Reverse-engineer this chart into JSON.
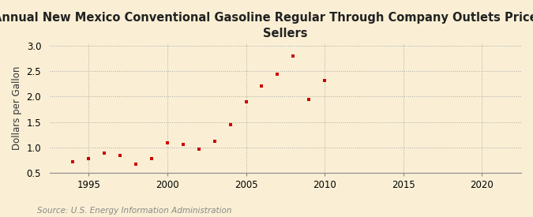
{
  "title": "Annual New Mexico Conventional Gasoline Regular Through Company Outlets Price by All\nSellers",
  "ylabel": "Dollars per Gallon",
  "source": "Source: U.S. Energy Information Administration",
  "years": [
    1994,
    1995,
    1996,
    1997,
    1998,
    1999,
    2000,
    2001,
    2002,
    2003,
    2004,
    2005,
    2006,
    2007,
    2008,
    2009,
    2010
  ],
  "values": [
    0.72,
    0.77,
    0.88,
    0.84,
    0.67,
    0.78,
    1.09,
    1.05,
    0.96,
    1.12,
    1.45,
    1.9,
    2.21,
    2.45,
    2.8,
    1.95,
    2.32
  ],
  "marker_color": "#cc0000",
  "background_color": "#faefd4",
  "grid_color": "#aaaaaa",
  "xlim": [
    1992.5,
    2022.5
  ],
  "ylim": [
    0.5,
    3.05
  ],
  "xticks": [
    1995,
    2000,
    2005,
    2010,
    2015,
    2020
  ],
  "yticks": [
    0.5,
    1.0,
    1.5,
    2.0,
    2.5,
    3.0
  ],
  "title_fontsize": 10.5,
  "label_fontsize": 8.5,
  "source_fontsize": 7.5
}
